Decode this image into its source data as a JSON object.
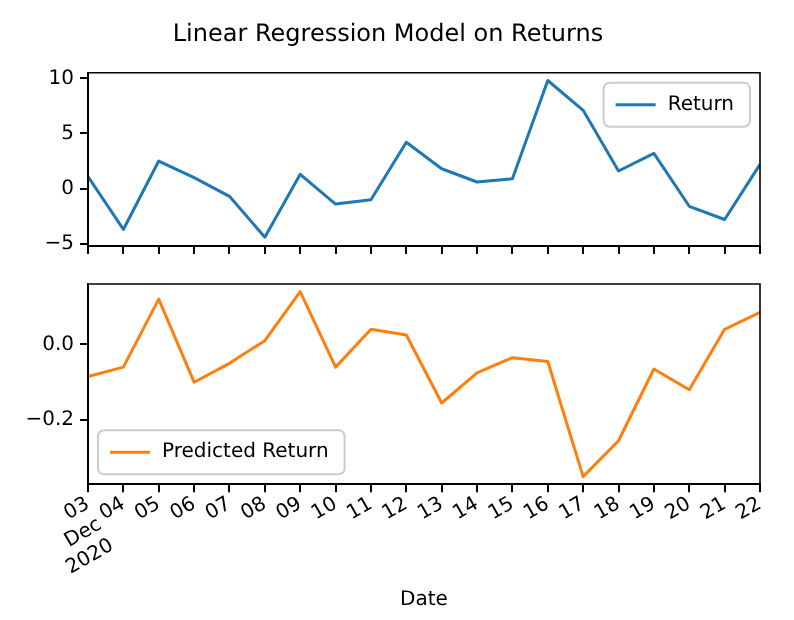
{
  "chart_data": [
    {
      "type": "line",
      "title": "Linear Regression Model on Returns",
      "x": [
        "2020-12-03",
        "2020-12-04",
        "2020-12-05",
        "2020-12-06",
        "2020-12-07",
        "2020-12-08",
        "2020-12-09",
        "2020-12-10",
        "2020-12-11",
        "2020-12-12",
        "2020-12-13",
        "2020-12-14",
        "2020-12-15",
        "2020-12-16",
        "2020-12-17",
        "2020-12-18",
        "2020-12-19",
        "2020-12-20",
        "2020-12-21",
        "2020-12-22"
      ],
      "series": [
        {
          "name": "Return",
          "color": "#1f77b4",
          "values": [
            1.1,
            -3.7,
            2.5,
            1.0,
            -0.7,
            -4.4,
            1.3,
            -1.4,
            -1.0,
            4.2,
            1.8,
            0.6,
            0.9,
            9.8,
            7.1,
            1.6,
            3.2,
            -1.6,
            -2.8,
            2.2
          ]
        }
      ],
      "xlim": [
        "2020-12-03",
        "2020-12-22"
      ],
      "xticks": [
        {
          "value": "2020-12-03",
          "label": null
        },
        {
          "value": "2020-12-04",
          "label": null
        },
        {
          "value": "2020-12-05",
          "label": null
        },
        {
          "value": "2020-12-06",
          "label": null
        },
        {
          "value": "2020-12-07",
          "label": null
        },
        {
          "value": "2020-12-08",
          "label": null
        },
        {
          "value": "2020-12-09",
          "label": null
        },
        {
          "value": "2020-12-10",
          "label": null
        },
        {
          "value": "2020-12-11",
          "label": null
        },
        {
          "value": "2020-12-12",
          "label": null
        },
        {
          "value": "2020-12-13",
          "label": null
        },
        {
          "value": "2020-12-14",
          "label": null
        },
        {
          "value": "2020-12-15",
          "label": null
        },
        {
          "value": "2020-12-16",
          "label": null
        },
        {
          "value": "2020-12-17",
          "label": null
        },
        {
          "value": "2020-12-18",
          "label": null
        },
        {
          "value": "2020-12-19",
          "label": null
        },
        {
          "value": "2020-12-20",
          "label": null
        },
        {
          "value": "2020-12-21",
          "label": null
        },
        {
          "value": "2020-12-22",
          "label": null
        }
      ],
      "ylim": [
        -5.2,
        10.5
      ],
      "yticks": [
        {
          "value": -5,
          "label": "−5"
        },
        0,
        5,
        10
      ],
      "tick_labels": "y",
      "legend": "top right",
      "grid": false,
      "marker": "none"
    },
    {
      "type": "line",
      "xlabel": "Date",
      "x": [
        "2020-12-03",
        "2020-12-04",
        "2020-12-05",
        "2020-12-06",
        "2020-12-07",
        "2020-12-08",
        "2020-12-09",
        "2020-12-10",
        "2020-12-11",
        "2020-12-12",
        "2020-12-13",
        "2020-12-14",
        "2020-12-15",
        "2020-12-16",
        "2020-12-17",
        "2020-12-18",
        "2020-12-19",
        "2020-12-20",
        "2020-12-21",
        "2020-12-22"
      ],
      "series": [
        {
          "name": "Predicted Return",
          "color": "#ff7f0e",
          "values": [
            -0.085,
            -0.06,
            0.12,
            -0.1,
            -0.05,
            0.01,
            0.14,
            -0.06,
            0.04,
            0.025,
            -0.155,
            -0.075,
            -0.035,
            -0.045,
            -0.35,
            -0.255,
            -0.065,
            -0.12,
            0.04,
            0.085
          ]
        }
      ],
      "xlim": [
        "2020-12-03",
        "2020-12-22"
      ],
      "xticks": [
        {
          "value": "2020-12-03",
          "label": "03\nDec\n2020"
        },
        {
          "value": "2020-12-04",
          "label": "04"
        },
        {
          "value": "2020-12-05",
          "label": "05"
        },
        {
          "value": "2020-12-06",
          "label": "06"
        },
        {
          "value": "2020-12-07",
          "label": "07"
        },
        {
          "value": "2020-12-08",
          "label": "08"
        },
        {
          "value": "2020-12-09",
          "label": "09"
        },
        {
          "value": "2020-12-10",
          "label": "10"
        },
        {
          "value": "2020-12-11",
          "label": "11"
        },
        {
          "value": "2020-12-12",
          "label": "12"
        },
        {
          "value": "2020-12-13",
          "label": "13"
        },
        {
          "value": "2020-12-14",
          "label": "14"
        },
        {
          "value": "2020-12-15",
          "label": "15"
        },
        {
          "value": "2020-12-16",
          "label": "16"
        },
        {
          "value": "2020-12-17",
          "label": "17"
        },
        {
          "value": "2020-12-18",
          "label": "18"
        },
        {
          "value": "2020-12-19",
          "label": "19"
        },
        {
          "value": "2020-12-20",
          "label": "20"
        },
        {
          "value": "2020-12-21",
          "label": "21"
        },
        {
          "value": "2020-12-22",
          "label": "22"
        }
      ],
      "ylim": [
        -0.37,
        0.16
      ],
      "yticks": [
        {
          "value": -0.2,
          "label": "−0.2"
        },
        {
          "value": 0,
          "label": "0.0"
        }
      ],
      "legend": "bottom left",
      "grid": false,
      "marker": "none"
    }
  ]
}
